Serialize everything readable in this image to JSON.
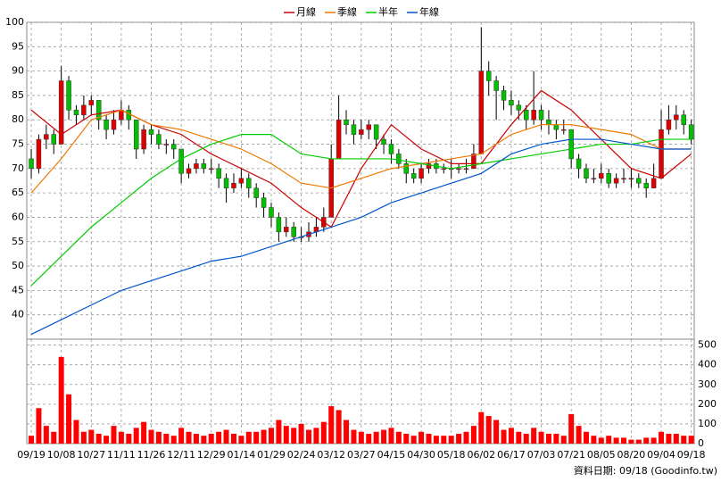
{
  "chart_data": [
    {
      "type": "candlestick",
      "ylim": [
        35,
        100
      ],
      "yticks": [
        40,
        45,
        50,
        55,
        60,
        65,
        70,
        75,
        80,
        85,
        90,
        95,
        100
      ],
      "xlim": [
        -0.6,
        88.4
      ],
      "xticks": [
        {
          "value": 0,
          "label": "09/19"
        },
        {
          "value": 4,
          "label": "10/08"
        },
        {
          "value": 8,
          "label": "10/27"
        },
        {
          "value": 12,
          "label": "11/11"
        },
        {
          "value": 16,
          "label": "11/26"
        },
        {
          "value": 20,
          "label": "12/11"
        },
        {
          "value": 24,
          "label": "12/29"
        },
        {
          "value": 28,
          "label": "01/14"
        },
        {
          "value": 32,
          "label": "01/29"
        },
        {
          "value": 36,
          "label": "02/24"
        },
        {
          "value": 40,
          "label": "03/12"
        },
        {
          "value": 44,
          "label": "03/27"
        },
        {
          "value": 48,
          "label": "04/15"
        },
        {
          "value": 52,
          "label": "04/30"
        },
        {
          "value": 56,
          "label": "05/18"
        },
        {
          "value": 60,
          "label": "06/02"
        },
        {
          "value": 64,
          "label": "06/17"
        },
        {
          "value": 68,
          "label": "07/03"
        },
        {
          "value": 72,
          "label": "07/21"
        },
        {
          "value": 76,
          "label": "08/05"
        },
        {
          "value": 80,
          "label": "08/20"
        },
        {
          "value": 84,
          "label": "09/04"
        },
        {
          "value": 88,
          "label": "09/18"
        }
      ],
      "grid": true,
      "up_color": "#e00000",
      "down_color": "#00c000",
      "candles": [
        [
          72,
          74,
          68,
          70
        ],
        [
          70,
          77,
          69,
          76
        ],
        [
          76,
          79,
          74,
          77
        ],
        [
          77,
          78,
          73,
          75
        ],
        [
          75,
          91,
          75,
          88
        ],
        [
          88,
          89,
          80,
          82
        ],
        [
          82,
          83,
          79,
          81
        ],
        [
          81,
          85,
          80,
          83
        ],
        [
          83,
          85,
          81,
          84
        ],
        [
          84,
          84,
          78,
          80
        ],
        [
          80,
          81,
          76,
          78
        ],
        [
          78,
          82,
          77,
          80
        ],
        [
          80,
          84,
          79,
          82
        ],
        [
          82,
          83,
          78,
          80
        ],
        [
          80,
          80,
          72,
          74
        ],
        [
          74,
          79,
          73,
          78
        ],
        [
          78,
          79,
          75,
          77
        ],
        [
          77,
          78,
          74,
          75
        ],
        [
          75,
          76,
          73,
          75
        ],
        [
          75,
          76,
          72,
          74
        ],
        [
          74,
          74,
          67,
          69
        ],
        [
          69,
          71,
          68,
          70
        ],
        [
          70,
          72,
          69,
          71
        ],
        [
          71,
          72,
          69,
          70
        ],
        [
          70,
          72,
          69,
          70
        ],
        [
          70,
          71,
          66,
          68
        ],
        [
          68,
          69,
          63,
          66
        ],
        [
          66,
          69,
          65,
          67
        ],
        [
          67,
          70,
          66,
          68
        ],
        [
          68,
          69,
          64,
          66
        ],
        [
          66,
          67,
          62,
          64
        ],
        [
          64,
          65,
          60,
          62
        ],
        [
          62,
          63,
          58,
          60
        ],
        [
          60,
          61,
          55,
          57
        ],
        [
          57,
          60,
          56,
          58
        ],
        [
          58,
          59,
          55,
          56
        ],
        [
          56,
          58,
          55,
          56
        ],
        [
          56,
          59,
          55,
          57
        ],
        [
          57,
          60,
          56,
          58
        ],
        [
          58,
          62,
          57,
          60
        ],
        [
          60,
          75,
          60,
          72
        ],
        [
          72,
          85,
          72,
          80
        ],
        [
          80,
          82,
          77,
          79
        ],
        [
          79,
          80,
          75,
          77
        ],
        [
          77,
          80,
          76,
          78
        ],
        [
          78,
          80,
          76,
          79
        ],
        [
          79,
          79,
          74,
          76
        ],
        [
          76,
          77,
          73,
          75
        ],
        [
          75,
          76,
          71,
          73
        ],
        [
          73,
          74,
          70,
          71
        ],
        [
          71,
          72,
          67,
          69
        ],
        [
          69,
          70,
          67,
          68
        ],
        [
          68,
          71,
          67,
          70
        ],
        [
          70,
          72,
          69,
          71
        ],
        [
          71,
          72,
          69,
          70
        ],
        [
          70,
          71,
          69,
          70
        ],
        [
          70,
          72,
          68,
          70
        ],
        [
          70,
          71,
          69,
          70
        ],
        [
          70,
          72,
          69,
          70
        ],
        [
          70,
          75,
          70,
          73
        ],
        [
          73,
          99,
          73,
          90
        ],
        [
          90,
          92,
          85,
          88
        ],
        [
          88,
          89,
          80,
          86
        ],
        [
          86,
          87,
          82,
          84
        ],
        [
          84,
          86,
          81,
          83
        ],
        [
          83,
          84,
          80,
          82
        ],
        [
          82,
          83,
          78,
          80
        ],
        [
          80,
          90,
          79,
          82
        ],
        [
          82,
          83,
          78,
          80
        ],
        [
          80,
          82,
          77,
          79
        ],
        [
          79,
          80,
          76,
          78
        ],
        [
          78,
          80,
          77,
          78
        ],
        [
          78,
          78,
          70,
          72
        ],
        [
          72,
          73,
          68,
          70
        ],
        [
          70,
          71,
          67,
          68
        ],
        [
          68,
          70,
          67,
          68
        ],
        [
          68,
          71,
          67,
          69
        ],
        [
          69,
          70,
          66,
          67
        ],
        [
          67,
          69,
          66,
          68
        ],
        [
          68,
          70,
          67,
          68
        ],
        [
          68,
          70,
          66,
          68
        ],
        [
          68,
          69,
          66,
          67
        ],
        [
          67,
          68,
          64,
          66
        ],
        [
          66,
          71,
          66,
          68
        ],
        [
          68,
          82,
          68,
          78
        ],
        [
          78,
          83,
          77,
          80
        ],
        [
          80,
          83,
          78,
          81
        ],
        [
          81,
          82,
          77,
          79
        ],
        [
          79,
          80,
          75,
          76
        ]
      ],
      "series": [
        {
          "name": "月線",
          "color": "#cc0000",
          "x": [
            0,
            4,
            8,
            12,
            16,
            20,
            24,
            28,
            32,
            36,
            40,
            44,
            48,
            52,
            56,
            60,
            64,
            68,
            72,
            76,
            80,
            84,
            88
          ],
          "values": [
            82,
            77,
            81,
            82,
            79,
            77,
            73,
            70,
            67,
            62,
            58,
            70,
            79,
            74,
            71,
            71,
            79,
            86,
            82,
            76,
            70,
            68,
            73
          ]
        },
        {
          "name": "季線",
          "color": "#ee7700",
          "x": [
            0,
            4,
            8,
            12,
            16,
            20,
            24,
            28,
            32,
            36,
            40,
            44,
            48,
            52,
            56,
            60,
            64,
            68,
            72,
            76,
            80,
            84,
            88
          ],
          "values": [
            65,
            72,
            80,
            82,
            79,
            78,
            76,
            74,
            71,
            67,
            66,
            68,
            70,
            71,
            72,
            73,
            77,
            79,
            79,
            78,
            77,
            74,
            74
          ]
        },
        {
          "name": "半年",
          "color": "#00cc00",
          "x": [
            0,
            4,
            8,
            12,
            16,
            20,
            24,
            28,
            32,
            36,
            40,
            44,
            48,
            52,
            56,
            60,
            64,
            68,
            72,
            76,
            80,
            84,
            88
          ],
          "values": [
            46,
            52,
            58,
            63,
            68,
            72,
            75,
            77,
            77,
            73,
            72,
            72,
            72,
            71,
            70,
            71,
            72,
            73,
            74,
            75,
            75,
            76,
            76
          ]
        },
        {
          "name": "年線",
          "color": "#0055cc",
          "x": [
            0,
            4,
            8,
            12,
            16,
            20,
            24,
            28,
            32,
            36,
            40,
            44,
            48,
            52,
            56,
            60,
            64,
            68,
            72,
            76,
            80,
            84,
            88
          ],
          "values": [
            36,
            39,
            42,
            45,
            47,
            49,
            51,
            52,
            54,
            56,
            58,
            60,
            63,
            65,
            67,
            69,
            73,
            75,
            76,
            76,
            75,
            74,
            74
          ]
        }
      ]
    },
    {
      "type": "bar",
      "color": "#ff0000",
      "ylim": [
        0,
        530
      ],
      "yticks": [
        0,
        100,
        200,
        300,
        400,
        500
      ],
      "values": [
        40,
        180,
        90,
        60,
        440,
        250,
        120,
        60,
        70,
        50,
        40,
        90,
        60,
        50,
        80,
        110,
        70,
        60,
        50,
        40,
        80,
        60,
        50,
        40,
        50,
        60,
        70,
        50,
        40,
        60,
        60,
        70,
        80,
        120,
        90,
        80,
        100,
        70,
        80,
        110,
        190,
        170,
        120,
        70,
        60,
        50,
        60,
        70,
        80,
        60,
        50,
        40,
        60,
        50,
        40,
        40,
        40,
        50,
        60,
        90,
        160,
        140,
        120,
        70,
        80,
        60,
        50,
        80,
        60,
        50,
        50,
        40,
        150,
        90,
        60,
        40,
        30,
        40,
        30,
        30,
        20,
        20,
        30,
        30,
        60,
        50,
        50,
        40,
        40
      ]
    }
  ],
  "footer": "資料日期: 09/18 (Goodinfo.tw)"
}
